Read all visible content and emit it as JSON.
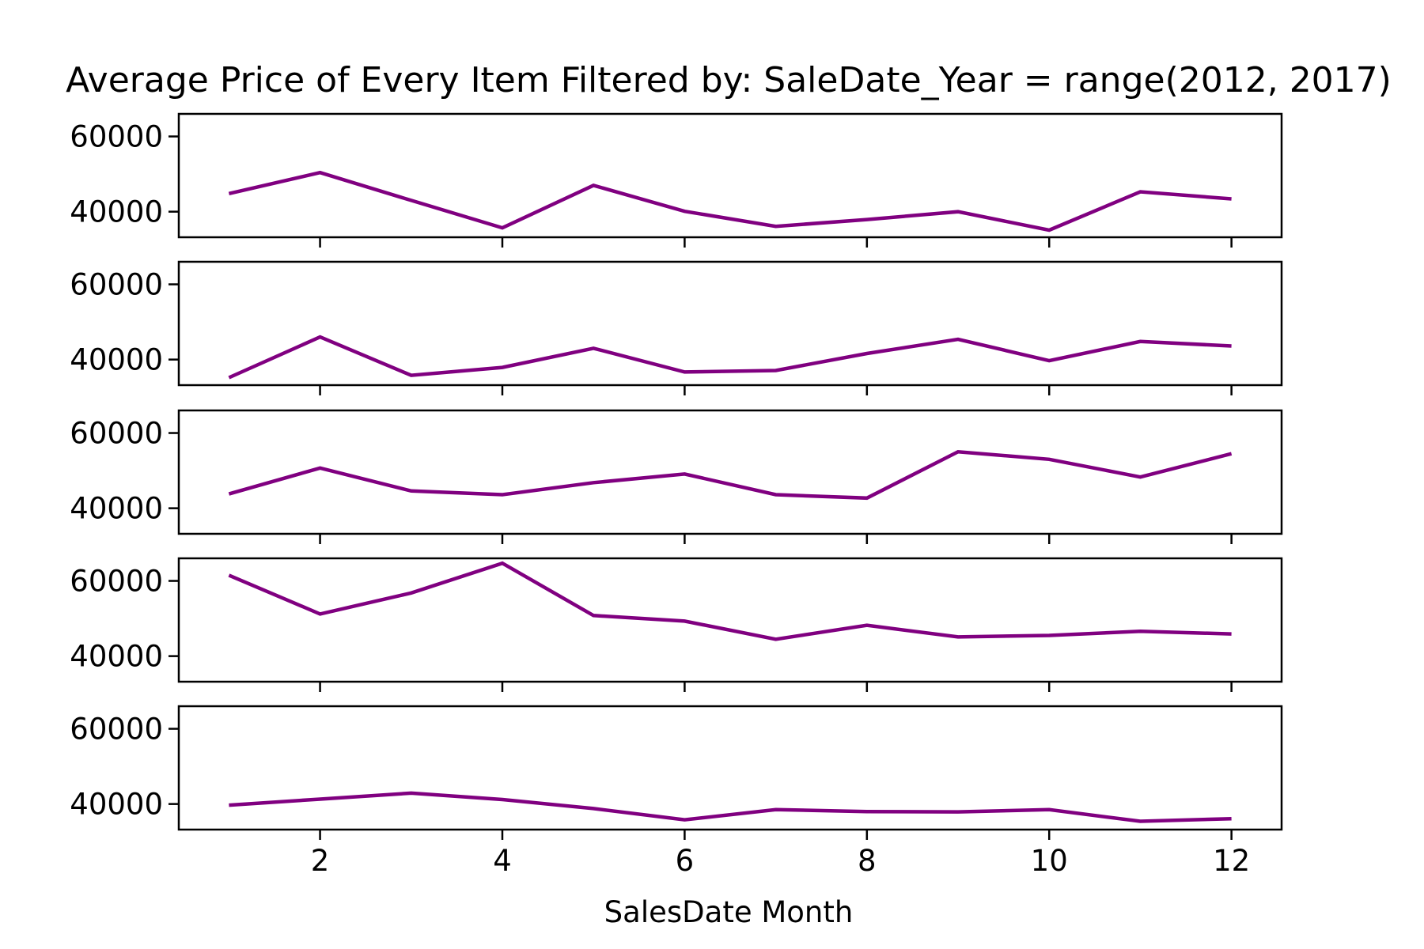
{
  "chart_data": {
    "type": "line",
    "title": "Average Price of Every Item Filtered by: SaleDate_Year = range(2012, 2017)",
    "xlabel": "SalesDate Month",
    "ylabel": "",
    "x": [
      1,
      2,
      3,
      4,
      5,
      6,
      7,
      8,
      9,
      10,
      11,
      12
    ],
    "xticks": [
      2,
      4,
      6,
      8,
      10,
      12
    ],
    "xlim": [
      0.45,
      12.55
    ],
    "ylim": [
      33200,
      66000
    ],
    "yticks": [
      40000,
      60000
    ],
    "grid": false,
    "legend": "none",
    "line_color": "#800080",
    "series": [
      {
        "values": [
          44800,
          50400,
          43000,
          35700,
          47000,
          40100,
          36100,
          37900,
          40000,
          35100,
          45300,
          43400
        ]
      },
      {
        "values": [
          35200,
          46000,
          35800,
          37900,
          43000,
          36700,
          37100,
          41600,
          45400,
          39700,
          44800,
          43600
        ]
      },
      {
        "values": [
          43800,
          50700,
          44600,
          43600,
          46800,
          49100,
          43600,
          42700,
          55000,
          53000,
          48300,
          54500
        ]
      },
      {
        "values": [
          61500,
          51200,
          56800,
          64700,
          50800,
          49300,
          44500,
          48200,
          45100,
          45500,
          46600,
          45900
        ]
      },
      {
        "values": [
          39700,
          41300,
          42900,
          41200,
          38800,
          35800,
          38500,
          38000,
          37900,
          38500,
          35400,
          36100
        ]
      }
    ]
  }
}
